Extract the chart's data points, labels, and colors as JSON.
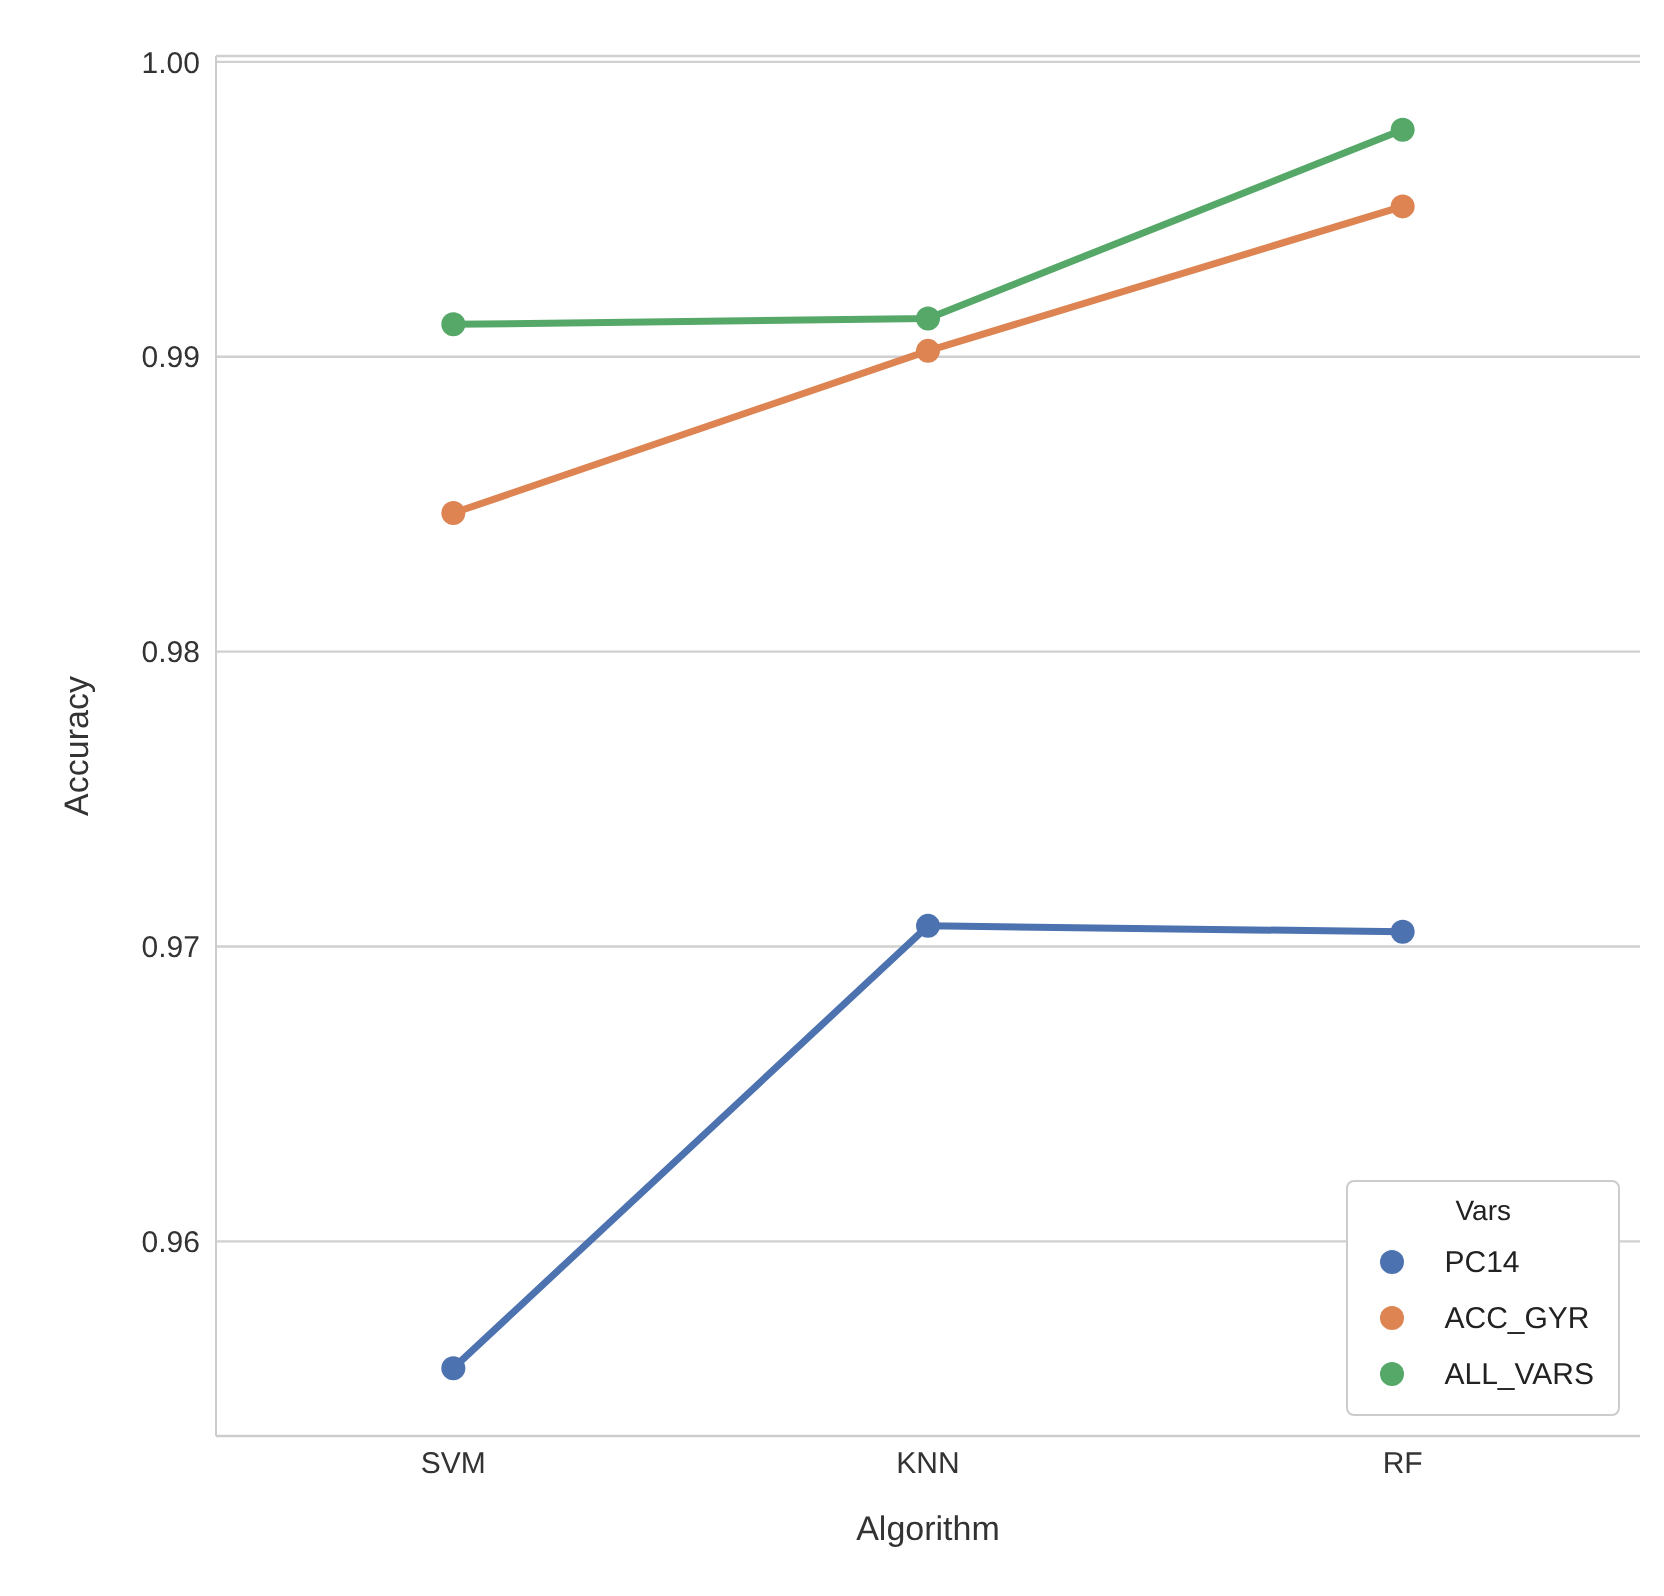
{
  "chart_data": {
    "type": "line",
    "xlabel": "Algorithm",
    "ylabel": "Accuracy",
    "legend_title": "Vars",
    "categories": [
      "SVM",
      "KNN",
      "RF"
    ],
    "series": [
      {
        "name": "PC14",
        "color": "#4c72b0",
        "values": [
          0.9557,
          0.9707,
          0.9705
        ]
      },
      {
        "name": "ACC_GYR",
        "color": "#dd8452",
        "values": [
          0.9847,
          0.9902,
          0.9951
        ]
      },
      {
        "name": "ALL_VARS",
        "color": "#55a868",
        "values": [
          0.9911,
          0.9913,
          0.9977
        ]
      }
    ],
    "ylim": [
      0.9534,
      1.0002
    ],
    "yticks": [
      {
        "value": 0.96,
        "label": "0.96"
      },
      {
        "value": 0.97,
        "label": "0.97"
      },
      {
        "value": 0.98,
        "label": "0.98"
      },
      {
        "value": 0.99,
        "label": "0.99"
      },
      {
        "value": 1.0,
        "label": "1.00"
      }
    ],
    "grid": "y",
    "legend": "bottom right",
    "marker": "circle",
    "line_style": "solid"
  }
}
